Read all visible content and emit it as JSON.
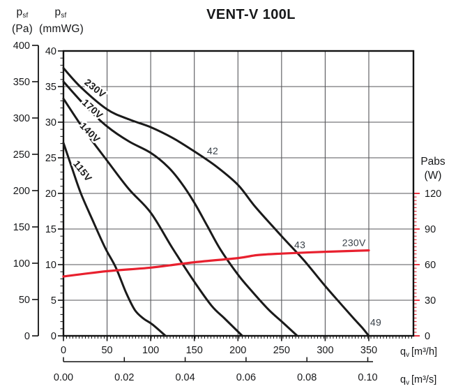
{
  "title": "VENT-V 100L",
  "labels": {
    "p_symbol": "p",
    "p_sub": "sf",
    "pa_unit": "(Pa)",
    "mmwg_unit": "(mmWG)",
    "pabs_name": "Pabs",
    "pabs_unit": "(W)",
    "q_symbol": "q",
    "q_sub": "v",
    "qh_bracket": "[m³/h]",
    "qs_bracket": "[m³/s]"
  },
  "colors": {
    "accent_red": "#e8202e",
    "curve_black": "#1a1a1a",
    "grid_gray": "#55565a"
  },
  "chart_data": {
    "type": "line",
    "title": "VENT-V 100L",
    "grid": true,
    "x_axis": {
      "label": "qv",
      "units_primary": "m³/h",
      "range": [
        0,
        401
      ],
      "ticks": [
        0,
        50,
        100,
        150,
        200,
        250,
        300,
        350
      ],
      "units_secondary": "m³/s",
      "secondary_ticks": [
        "0.00",
        "0.02",
        "0.04",
        "0.06",
        "0.08",
        "0.10"
      ]
    },
    "y_axis_left": {
      "label": "psf",
      "units": [
        "Pa",
        "mmWG"
      ],
      "pa_range": [
        0,
        400
      ],
      "pa_ticks": [
        0,
        50,
        100,
        150,
        200,
        250,
        300,
        350,
        400
      ],
      "mmwg_range": [
        0,
        40
      ],
      "mmwg_ticks": [
        0,
        5,
        10,
        15,
        20,
        25,
        30,
        35,
        40
      ]
    },
    "y_axis_right": {
      "label": "Pabs",
      "units": "W",
      "ticks": [
        0,
        30,
        60,
        90,
        120
      ],
      "scale_note": "30 W per 5 mmWG gridline",
      "color": "#e8202e"
    },
    "series": [
      {
        "name": "230V",
        "kind": "pressure",
        "color": "#1a1a1a",
        "points": [
          [
            0,
            37.6
          ],
          [
            20,
            34.9
          ],
          [
            50,
            31.8
          ],
          [
            75,
            30.4
          ],
          [
            100,
            29.3
          ],
          [
            125,
            27.8
          ],
          [
            150,
            25.9
          ],
          [
            175,
            23.8
          ],
          [
            200,
            21.2
          ],
          [
            220,
            18.1
          ],
          [
            250,
            14.0
          ],
          [
            275,
            10.7
          ],
          [
            300,
            7.0
          ],
          [
            320,
            4.2
          ],
          [
            333,
            2.4
          ],
          [
            342,
            1.2
          ],
          [
            350,
            0
          ]
        ]
      },
      {
        "name": "170V",
        "kind": "pressure",
        "color": "#1a1a1a",
        "points": [
          [
            0,
            35.7
          ],
          [
            25,
            32.3
          ],
          [
            50,
            29.4
          ],
          [
            75,
            27.3
          ],
          [
            100,
            25.7
          ],
          [
            120,
            23.7
          ],
          [
            135,
            21.5
          ],
          [
            150,
            18.7
          ],
          [
            165,
            15.4
          ],
          [
            180,
            12.1
          ],
          [
            200,
            8.6
          ],
          [
            215,
            6.4
          ],
          [
            235,
            3.7
          ],
          [
            252,
            1.8
          ],
          [
            268,
            0
          ]
        ]
      },
      {
        "name": "140V",
        "kind": "pressure",
        "color": "#1a1a1a",
        "points": [
          [
            0,
            33.3
          ],
          [
            25,
            28.7
          ],
          [
            50,
            24.6
          ],
          [
            75,
            20.6
          ],
          [
            100,
            17.3
          ],
          [
            125,
            12.3
          ],
          [
            150,
            7.6
          ],
          [
            170,
            4.2
          ],
          [
            185,
            2.4
          ],
          [
            205,
            0
          ]
        ]
      },
      {
        "name": "115V",
        "kind": "pressure",
        "color": "#1a1a1a",
        "points": [
          [
            0,
            27.1
          ],
          [
            10,
            23.5
          ],
          [
            20,
            20.0
          ],
          [
            35,
            15.8
          ],
          [
            48,
            12.3
          ],
          [
            60,
            9.6
          ],
          [
            72,
            6.0
          ],
          [
            82,
            3.6
          ],
          [
            92,
            2.4
          ],
          [
            102,
            1.6
          ],
          [
            117,
            0
          ]
        ]
      },
      {
        "name": "230V",
        "kind": "power",
        "color": "#e8202e",
        "points": [
          [
            0,
            50
          ],
          [
            50,
            54.5
          ],
          [
            100,
            57.5
          ],
          [
            150,
            62
          ],
          [
            200,
            65.5
          ],
          [
            222,
            68
          ],
          [
            250,
            69.3
          ],
          [
            300,
            70.8
          ],
          [
            350,
            72
          ]
        ]
      }
    ],
    "annotations": [
      {
        "text": "42",
        "q": 171,
        "p_mmwg": 26.0
      },
      {
        "text": "43",
        "q": 271,
        "p_mmwg": 12.8
      },
      {
        "text": "49",
        "q": 358,
        "p_mmwg": 1.9
      },
      {
        "text": "230V",
        "q": 333,
        "p_mmwg": 13.1,
        "color": "#e8202e",
        "size": 16
      }
    ],
    "curve_labels": [
      {
        "text": "230V",
        "q": 36,
        "p_mmwg": 34.7,
        "angle": 38
      },
      {
        "text": "170V",
        "q": 33,
        "p_mmwg": 31.8,
        "angle": 42
      },
      {
        "text": "140V",
        "q": 30,
        "p_mmwg": 28.5,
        "angle": 45
      },
      {
        "text": "115V",
        "q": 21.5,
        "p_mmwg": 23.1,
        "angle": 52
      }
    ]
  }
}
